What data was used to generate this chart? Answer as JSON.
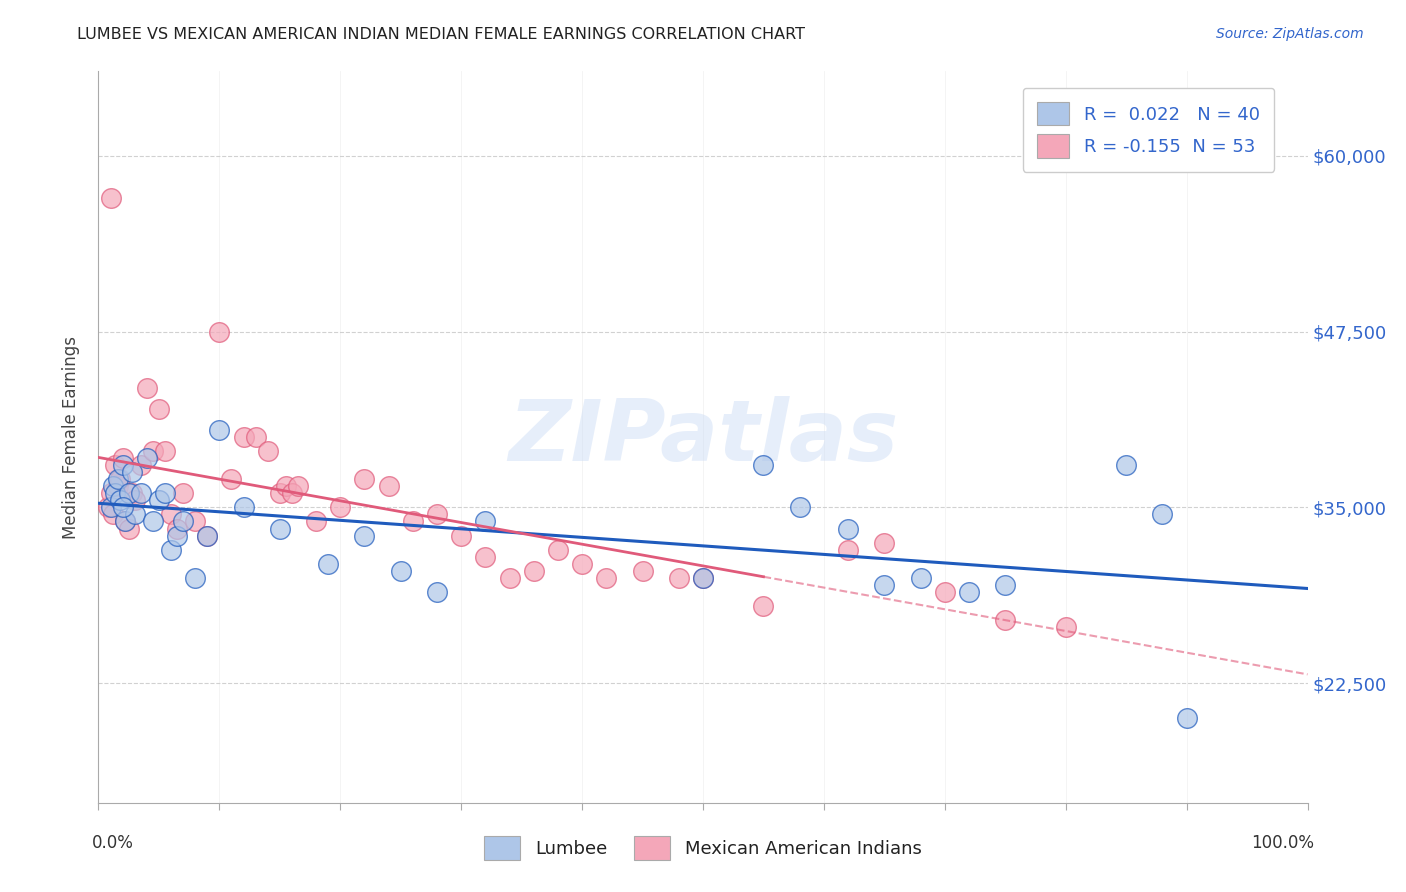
{
  "title": "LUMBEE VS MEXICAN AMERICAN INDIAN MEDIAN FEMALE EARNINGS CORRELATION CHART",
  "source": "Source: ZipAtlas.com",
  "ylabel": "Median Female Earnings",
  "watermark": "ZIPatlas",
  "yticks": [
    22500,
    35000,
    47500,
    60000
  ],
  "ytick_labels": [
    "$22,500",
    "$35,000",
    "$47,500",
    "$60,000"
  ],
  "ylim": [
    14000,
    66000
  ],
  "xlim": [
    0.0,
    1.0
  ],
  "lumbee_R": 0.022,
  "lumbee_N": 40,
  "mexican_R": -0.155,
  "mexican_N": 53,
  "lumbee_color": "#aec6e8",
  "mexican_color": "#f4a7b9",
  "lumbee_line_color": "#1f5bbd",
  "mexican_line_color": "#e05a7a",
  "background_color": "#ffffff",
  "grid_color": "#cccccc",
  "legend_text_color": "#3366cc",
  "xtick_positions": [
    0.0,
    0.1,
    0.2,
    0.3,
    0.4,
    0.5,
    0.6,
    0.7,
    0.8,
    0.9,
    1.0
  ],
  "lumbee_x": [
    0.01,
    0.012,
    0.014,
    0.016,
    0.018,
    0.02,
    0.022,
    0.025,
    0.028,
    0.03,
    0.035,
    0.04,
    0.045,
    0.05,
    0.055,
    0.06,
    0.065,
    0.07,
    0.08,
    0.09,
    0.1,
    0.12,
    0.15,
    0.19,
    0.22,
    0.25,
    0.28,
    0.32,
    0.5,
    0.55,
    0.58,
    0.62,
    0.65,
    0.68,
    0.72,
    0.75,
    0.85,
    0.88,
    0.9,
    0.02
  ],
  "lumbee_y": [
    35000,
    36500,
    36000,
    37000,
    35500,
    38000,
    34000,
    36000,
    37500,
    34500,
    36000,
    38500,
    34000,
    35500,
    36000,
    32000,
    33000,
    34000,
    30000,
    33000,
    40500,
    35000,
    33500,
    31000,
    33000,
    30500,
    29000,
    34000,
    30000,
    38000,
    35000,
    33500,
    29500,
    30000,
    29000,
    29500,
    38000,
    34500,
    20000,
    35000
  ],
  "mexican_x": [
    0.008,
    0.01,
    0.012,
    0.014,
    0.016,
    0.018,
    0.02,
    0.022,
    0.025,
    0.028,
    0.03,
    0.035,
    0.04,
    0.045,
    0.05,
    0.055,
    0.06,
    0.065,
    0.07,
    0.08,
    0.09,
    0.1,
    0.11,
    0.12,
    0.13,
    0.14,
    0.15,
    0.155,
    0.16,
    0.165,
    0.18,
    0.2,
    0.22,
    0.24,
    0.26,
    0.28,
    0.3,
    0.32,
    0.34,
    0.36,
    0.38,
    0.4,
    0.42,
    0.45,
    0.48,
    0.5,
    0.55,
    0.62,
    0.65,
    0.7,
    0.75,
    0.8,
    0.01
  ],
  "mexican_y": [
    35000,
    36000,
    34500,
    38000,
    36500,
    37000,
    38500,
    34000,
    33500,
    36000,
    35500,
    38000,
    43500,
    39000,
    42000,
    39000,
    34500,
    33500,
    36000,
    34000,
    33000,
    47500,
    37000,
    40000,
    40000,
    39000,
    36000,
    36500,
    36000,
    36500,
    34000,
    35000,
    37000,
    36500,
    34000,
    34500,
    33000,
    31500,
    30000,
    30500,
    32000,
    31000,
    30000,
    30500,
    30000,
    30000,
    28000,
    32000,
    32500,
    29000,
    27000,
    26500,
    57000
  ]
}
